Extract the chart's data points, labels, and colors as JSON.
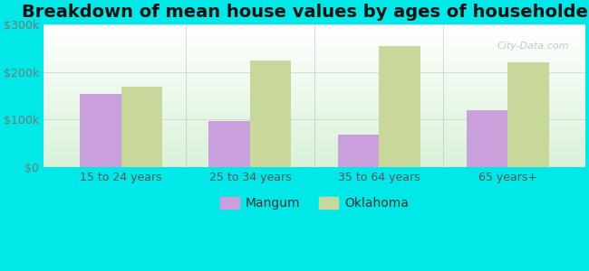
{
  "title": "Breakdown of mean house values by ages of householders",
  "categories": [
    "15 to 24 years",
    "25 to 34 years",
    "35 to 64 years",
    "65 years+"
  ],
  "mangum_values": [
    155000,
    97000,
    68000,
    120000
  ],
  "oklahoma_values": [
    170000,
    225000,
    255000,
    220000
  ],
  "mangum_color": "#c9a0dc",
  "oklahoma_color": "#c8d89a",
  "outer_background": "#00e8e8",
  "ylim": [
    0,
    300000
  ],
  "yticks": [
    0,
    100000,
    200000,
    300000
  ],
  "ytick_labels": [
    "$0",
    "$100k",
    "$200k",
    "$300k"
  ],
  "bar_width": 0.32,
  "legend_mangum": "Mangum",
  "legend_oklahoma": "Oklahoma",
  "title_fontsize": 14,
  "tick_fontsize": 9,
  "legend_fontsize": 10,
  "watermark_text": "City-Data.com",
  "separator_color": "#aaaaaa",
  "grid_color": "#cccccc"
}
